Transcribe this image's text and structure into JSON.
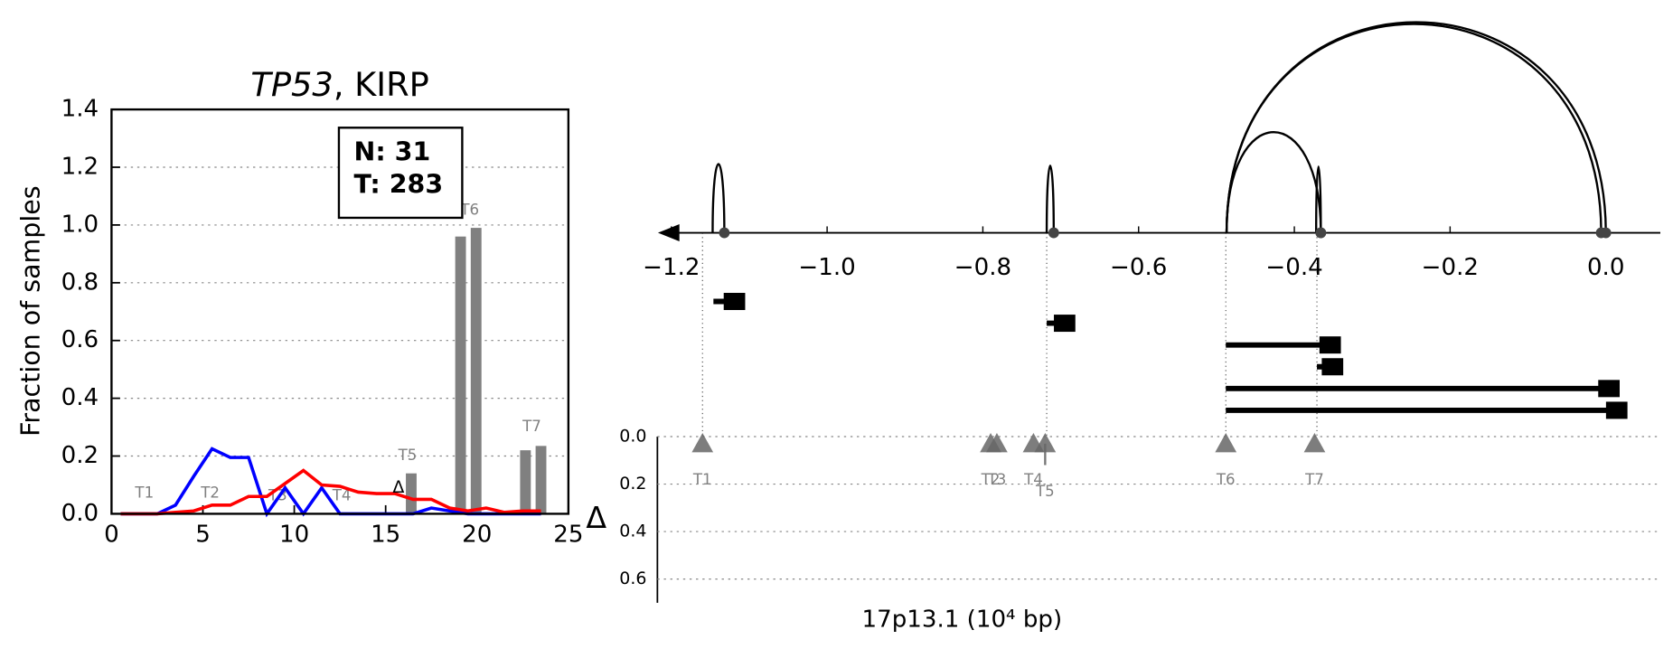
{
  "chart_data": [
    {
      "type": "line",
      "title_parts": [
        "TP53",
        ", KIRP"
      ],
      "ylabel": "Fraction of samples",
      "xlim": [
        0,
        25
      ],
      "ylim": [
        0,
        1.4
      ],
      "xticks": [
        0,
        5,
        10,
        15,
        20,
        25
      ],
      "yticks": [
        {
          "value": 0,
          "label": "0.0"
        },
        {
          "value": 0.2,
          "label": "0.2"
        },
        {
          "value": 0.4,
          "label": "0.4"
        },
        {
          "value": 0.6,
          "label": "0.6"
        },
        {
          "value": 0.8,
          "label": "0.8"
        },
        {
          "value": 1.0,
          "label": "1.0"
        },
        {
          "value": 1.2,
          "label": "1.2"
        },
        {
          "value": 1.4,
          "label": "1.4"
        }
      ],
      "grid": true,
      "x": [
        0.5,
        1.5,
        2.5,
        3.5,
        4.5,
        5.5,
        6.5,
        7.5,
        8.5,
        9.5,
        10.5,
        11.5,
        12.5,
        13.5,
        14.5,
        15.5,
        16.5,
        17.5,
        18.5,
        19.5,
        20.5,
        21.5,
        22.5,
        23.5
      ],
      "series": [
        {
          "color": "#0000ff",
          "values": [
            0,
            0,
            0,
            0.03,
            0.13,
            0.225,
            0.195,
            0.195,
            0,
            0.09,
            0,
            0.09,
            0,
            0,
            0,
            0,
            0,
            0.02,
            0.01,
            0,
            0,
            0,
            0,
            0
          ]
        },
        {
          "color": "#ff0000",
          "values": [
            0,
            0,
            0,
            0.005,
            0.01,
            0.03,
            0.03,
            0.06,
            0.06,
            0.105,
            0.15,
            0.1,
            0.095,
            0.075,
            0.07,
            0.07,
            0.05,
            0.05,
            0.02,
            0.01,
            0.02,
            0.005,
            0.01,
            0.01
          ]
        }
      ],
      "bars": {
        "color": "#808080",
        "x": [
          16.4,
          19.1,
          19.95,
          22.65,
          23.5
        ],
        "values": [
          0.14,
          0.96,
          0.99,
          0.22,
          0.235
        ]
      },
      "markers": [
        {
          "text": "T1",
          "x": 1.8,
          "y": 0.07
        },
        {
          "text": "T2",
          "x": 5.4,
          "y": 0.07
        },
        {
          "text": "T3",
          "x": 9.1,
          "y": 0.06
        },
        {
          "text": "T4",
          "x": 12.6,
          "y": 0.06
        },
        {
          "text": "T5",
          "x": 16.2,
          "y": 0.2
        },
        {
          "text": "T6",
          "x": 19.6,
          "y": 1.05
        },
        {
          "text": "T7",
          "x": 23.0,
          "y": 0.3
        }
      ],
      "delta_marker": {
        "text": "Δ",
        "x": 15.7,
        "y": 0.09
      },
      "box": [
        "N: 31",
        "T: 283"
      ]
    },
    {
      "type": "splice",
      "xlim": [
        -1.22,
        0.07
      ],
      "xticks": [
        {
          "value": -1.2,
          "label": "−1.2"
        },
        {
          "value": -1.0,
          "label": "−1.0"
        },
        {
          "value": -0.8,
          "label": "−0.8"
        },
        {
          "value": -0.6,
          "label": "−0.6"
        },
        {
          "value": -0.4,
          "label": "−0.4"
        },
        {
          "value": -0.2,
          "label": "−0.2"
        },
        {
          "value": 0,
          "label": "0.0"
        }
      ],
      "arcs": [
        {
          "start": -1.147,
          "end": -1.132
        },
        {
          "start": -0.718,
          "end": -0.709
        },
        {
          "start": -0.487,
          "end": -0.366
        },
        {
          "start": -0.372,
          "end": -0.366
        },
        {
          "start": -0.487,
          "end": -0.006
        },
        {
          "start": -0.487,
          "end": 0.0
        }
      ],
      "transcripts": [
        {
          "start": -1.146,
          "end": -1.119
        },
        {
          "start": -0.718,
          "end": -0.695
        },
        {
          "start": -0.488,
          "end": -0.354
        },
        {
          "start": -0.371,
          "end": -0.351
        },
        {
          "start": -0.488,
          "end": 0.004
        },
        {
          "start": -0.488,
          "end": 0.014
        }
      ],
      "guides": [
        -1.16,
        -0.718,
        -0.488,
        -0.371
      ],
      "delta_label": "Δ",
      "ylim": [
        0,
        0.7
      ],
      "yticks": [
        {
          "value": 0,
          "label": "0.0"
        },
        {
          "value": 0.2,
          "label": "0.2"
        },
        {
          "value": 0.4,
          "label": "0.4"
        },
        {
          "value": 0.6,
          "label": "0.6"
        }
      ],
      "sites": [
        {
          "label": "T1",
          "x": -1.16,
          "delta": 0.03
        },
        {
          "label": "T2",
          "x": -0.79,
          "delta": 0.03
        },
        {
          "label": "T3",
          "x": -0.782,
          "delta": 0.03
        },
        {
          "label": "T4",
          "x": -0.735,
          "delta": 0.03
        },
        {
          "label": "T5",
          "x": -0.72,
          "delta": 0.03,
          "error": 0.09
        },
        {
          "label": "T6",
          "x": -0.488,
          "delta": 0.03
        },
        {
          "label": "T7",
          "x": -0.374,
          "delta": 0.03
        }
      ],
      "xlabel": "17p13.1 (10⁴ bp)"
    }
  ]
}
